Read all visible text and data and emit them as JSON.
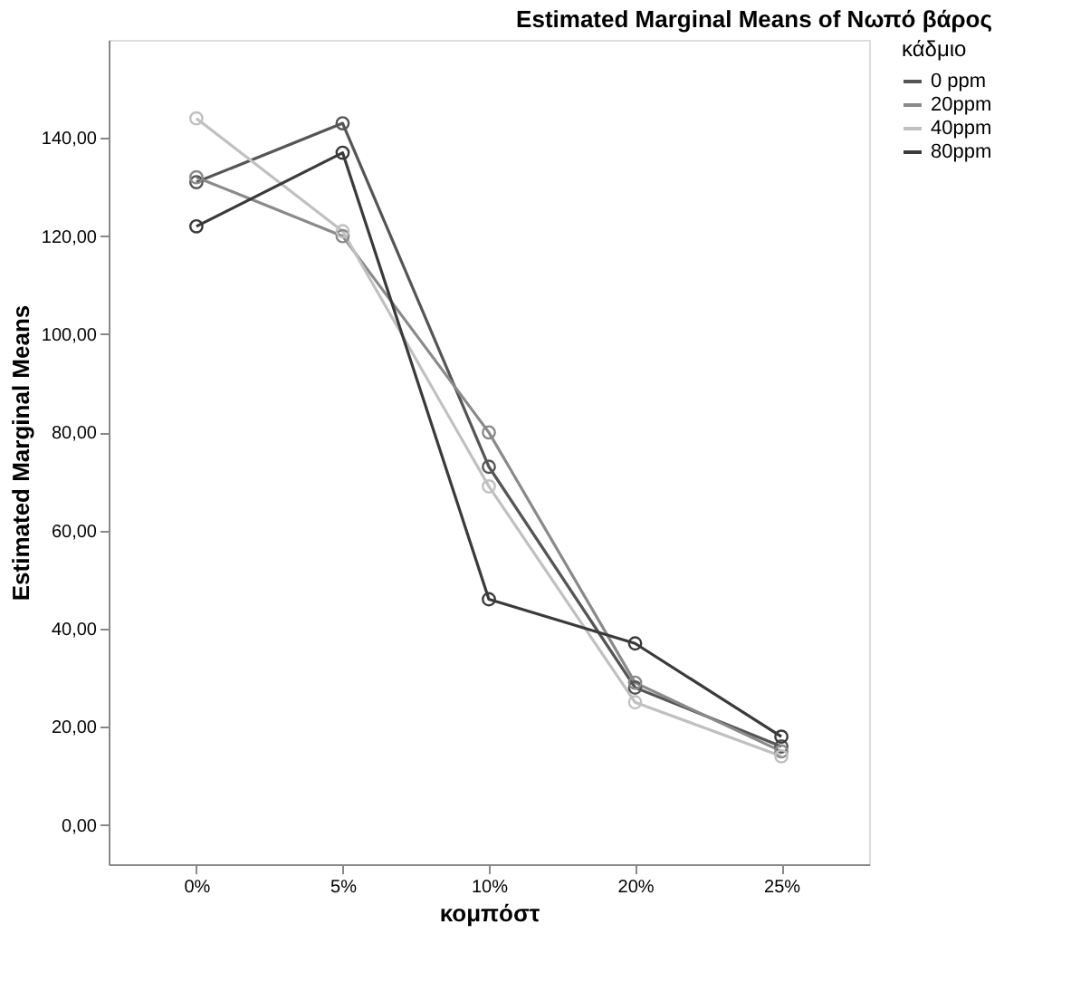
{
  "chart_data": {
    "type": "line",
    "title": "Estimated Marginal Means of Νωπό βάρος",
    "xlabel": "κομπόστ",
    "ylabel": "Estimated Marginal Means",
    "legend_title": "κάδμιο",
    "categories": [
      "0%",
      "5%",
      "10%",
      "20%",
      "25%"
    ],
    "series": [
      {
        "name": "0 ppm",
        "color": "#555555",
        "values": [
          131,
          143,
          73,
          28,
          16
        ]
      },
      {
        "name": "20ppm",
        "color": "#8a8a8a",
        "values": [
          132,
          120,
          80,
          29,
          15
        ]
      },
      {
        "name": "40ppm",
        "color": "#c0c0c0",
        "values": [
          144,
          121,
          69,
          25,
          14
        ]
      },
      {
        "name": "80ppm",
        "color": "#3a3a3a",
        "values": [
          122,
          137,
          46,
          37,
          18
        ]
      }
    ],
    "ylim": [
      -8,
      160
    ],
    "yticks": [
      {
        "value": 0,
        "label": "0,00"
      },
      {
        "value": 20,
        "label": "20,00"
      },
      {
        "value": 40,
        "label": "40,00"
      },
      {
        "value": 60,
        "label": "60,00"
      },
      {
        "value": 80,
        "label": "80,00"
      },
      {
        "value": 100,
        "label": "100,00"
      },
      {
        "value": 120,
        "label": "120,00"
      },
      {
        "value": 140,
        "label": "140,00"
      }
    ],
    "grid": false,
    "legend": "top right",
    "marker": "circle",
    "line_style": "solid"
  }
}
